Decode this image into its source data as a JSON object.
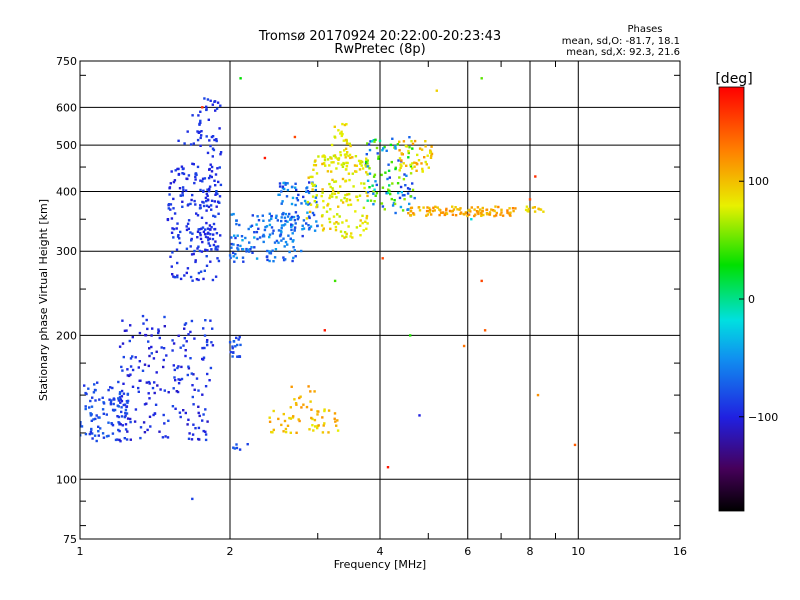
{
  "chart_data": {
    "type": "scatter",
    "title_lines": [
      "Tromsø 20170924 20:22:00-20:23:43",
      "RwPretec (8p)"
    ],
    "info": {
      "heading": "Phases",
      "line1": "mean, sd,O: -81.7, 18.1",
      "line2": "mean, sd,X:  92.3, 21.6"
    },
    "xlabel": "Frequency [MHz]",
    "ylabel": "Stationary phase Virtual Height [km]",
    "x_scale": "log",
    "y_scale": "log",
    "xlim": [
      1,
      16
    ],
    "ylim": [
      75,
      750
    ],
    "x_ticks": [
      {
        "v": 1,
        "label": "1",
        "major": true
      },
      {
        "v": 2,
        "label": "2",
        "major": true
      },
      {
        "v": 3,
        "label": "",
        "major": false
      },
      {
        "v": 4,
        "label": "4",
        "major": true
      },
      {
        "v": 5,
        "label": "",
        "major": false
      },
      {
        "v": 6,
        "label": "6",
        "major": true
      },
      {
        "v": 7,
        "label": "",
        "major": false
      },
      {
        "v": 8,
        "label": "8",
        "major": true
      },
      {
        "v": 9,
        "label": "",
        "major": false
      },
      {
        "v": 10,
        "label": "10",
        "major": true
      },
      {
        "v": 16,
        "label": "16",
        "major": false
      }
    ],
    "y_ticks": [
      {
        "v": 75,
        "label": "75"
      },
      {
        "v": 100,
        "label": "100"
      },
      {
        "v": 200,
        "label": "200"
      },
      {
        "v": 300,
        "label": "300"
      },
      {
        "v": 400,
        "label": "400"
      },
      {
        "v": 500,
        "label": "500"
      },
      {
        "v": 600,
        "label": "600"
      },
      {
        "v": 750,
        "label": "750"
      }
    ],
    "grid": true,
    "colorbar": {
      "label": "[deg]",
      "range": [
        -180,
        180
      ],
      "ticks": [
        {
          "v": 100,
          "label": "100"
        },
        {
          "v": 0,
          "label": "0"
        },
        {
          "v": -100,
          "label": "−100"
        }
      ],
      "colormap": "rainbow (black-purple-blue-cyan-green-yellow-orange-red)"
    },
    "point_clusters": [
      {
        "f": [
          1.0,
          1.25
        ],
        "h": [
          120,
          160
        ],
        "phase": [
          -95,
          -70
        ],
        "n": 110
      },
      {
        "f": [
          1.2,
          1.85
        ],
        "h": [
          120,
          220
        ],
        "phase": [
          -110,
          -80
        ],
        "n": 200
      },
      {
        "f": [
          1.5,
          1.9
        ],
        "h": [
          260,
          460
        ],
        "phase": [
          -105,
          -80
        ],
        "n": 170
      },
      {
        "f": [
          1.72,
          1.92
        ],
        "h": [
          300,
          640
        ],
        "phase": [
          -100,
          -80
        ],
        "n": 90
      },
      {
        "f": [
          1.55,
          1.75
        ],
        "h": [
          500,
          600
        ],
        "phase": [
          -95,
          -85
        ],
        "n": 10
      },
      {
        "f": [
          2.0,
          2.8
        ],
        "h": [
          285,
          360
        ],
        "phase": [
          -90,
          -40
        ],
        "n": 140
      },
      {
        "f": [
          2.5,
          3.0
        ],
        "h": [
          330,
          420
        ],
        "phase": [
          -95,
          -40
        ],
        "n": 80
      },
      {
        "f": [
          2.85,
          3.8
        ],
        "h": [
          320,
          480
        ],
        "phase": [
          70,
          110
        ],
        "n": 170
      },
      {
        "f": [
          3.2,
          3.5
        ],
        "h": [
          450,
          560
        ],
        "phase": [
          75,
          105
        ],
        "n": 35
      },
      {
        "f": [
          3.75,
          4.7
        ],
        "h": [
          360,
          520
        ],
        "phase": [
          -100,
          60
        ],
        "n": 110
      },
      {
        "f": [
          4.3,
          5.1
        ],
        "h": [
          440,
          510
        ],
        "phase": [
          80,
          120
        ],
        "n": 50
      },
      {
        "f": [
          4.5,
          7.5
        ],
        "h": [
          355,
          372
        ],
        "phase": [
          100,
          125
        ],
        "n": 110
      },
      {
        "f": [
          7.8,
          8.6
        ],
        "h": [
          362,
          372
        ],
        "phase": [
          90,
          110
        ],
        "n": 12
      },
      {
        "f": [
          2.4,
          3.3
        ],
        "h": [
          125,
          140
        ],
        "phase": [
          90,
          120
        ],
        "n": 50
      },
      {
        "f": [
          2.6,
          3.0
        ],
        "h": [
          140,
          160
        ],
        "phase": [
          100,
          120
        ],
        "n": 14
      },
      {
        "f": [
          2.0,
          2.1
        ],
        "h": [
          180,
          200
        ],
        "phase": [
          -90,
          -70
        ],
        "n": 20
      },
      {
        "f": [
          2.0,
          2.2
        ],
        "h": [
          115,
          120
        ],
        "phase": [
          -90,
          -70
        ],
        "n": 6
      }
    ],
    "points": [
      {
        "f": 1.68,
        "h": 91,
        "phase": -85
      },
      {
        "f": 1.76,
        "h": 600,
        "phase": 160
      },
      {
        "f": 2.1,
        "h": 690,
        "phase": 0
      },
      {
        "f": 3.1,
        "h": 205,
        "phase": 170
      },
      {
        "f": 3.25,
        "h": 260,
        "phase": 20
      },
      {
        "f": 4.15,
        "h": 106,
        "phase": 170
      },
      {
        "f": 4.05,
        "h": 290,
        "phase": 150
      },
      {
        "f": 4.8,
        "h": 136,
        "phase": -100
      },
      {
        "f": 6.4,
        "h": 690,
        "phase": 30
      },
      {
        "f": 6.5,
        "h": 205,
        "phase": 140
      },
      {
        "f": 6.4,
        "h": 260,
        "phase": 150
      },
      {
        "f": 8.3,
        "h": 150,
        "phase": 120
      },
      {
        "f": 9.85,
        "h": 118,
        "phase": 140
      },
      {
        "f": 8.0,
        "h": 385,
        "phase": 150
      },
      {
        "f": 8.2,
        "h": 430,
        "phase": 160
      },
      {
        "f": 5.2,
        "h": 650,
        "phase": 100
      },
      {
        "f": 5.9,
        "h": 190,
        "phase": 130
      },
      {
        "f": 4.6,
        "h": 200,
        "phase": 10
      },
      {
        "f": 6.1,
        "h": 350,
        "phase": -20
      },
      {
        "f": 2.35,
        "h": 470,
        "phase": 170
      },
      {
        "f": 2.7,
        "h": 520,
        "phase": 150
      }
    ]
  }
}
